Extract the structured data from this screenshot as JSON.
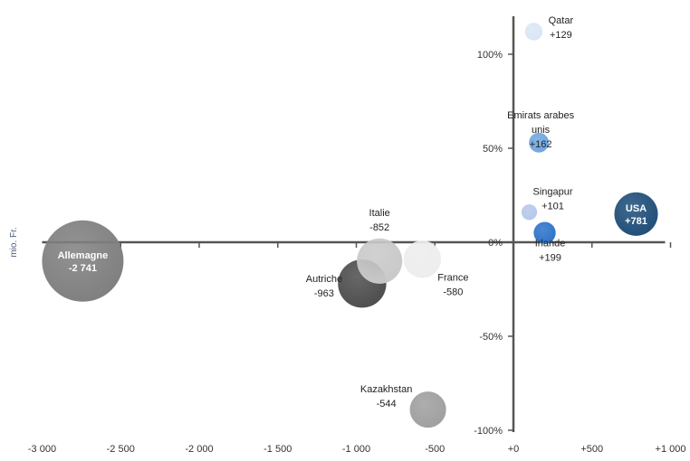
{
  "chart_data": {
    "type": "scatter",
    "title": "",
    "xlabel": "mio. Fr.",
    "ylabel": "",
    "xlim": [
      -3000,
      1000
    ],
    "ylim": [
      -100,
      120
    ],
    "x_ticks": [
      "-3 000",
      "-2 500",
      "-2 000",
      "-1 500",
      "-1 000",
      "-500",
      "+0",
      "+500",
      "+1 000"
    ],
    "x_tick_values": [
      -3000,
      -2500,
      -2000,
      -1500,
      -1000,
      -500,
      0,
      500,
      1000
    ],
    "y_ticks": [
      "100%",
      "50%",
      "0%",
      "-50%",
      "-100%"
    ],
    "y_tick_values": [
      100,
      50,
      0,
      -50,
      -100
    ],
    "grid": false,
    "points": [
      {
        "name": "Allemagne",
        "value_label": "-2 741",
        "x": -2741,
        "y": -10,
        "color": "#7f7f7f",
        "label_inside": true
      },
      {
        "name": "Autriche",
        "value_label": "-963",
        "x": -963,
        "y": -22,
        "color": "#4d4d4d",
        "label_inside": false
      },
      {
        "name": "Italie",
        "value_label": "-852",
        "x": -852,
        "y": -10,
        "color": "#c9c9c9",
        "label_inside": false
      },
      {
        "name": "France",
        "value_label": "-580",
        "x": -580,
        "y": -9,
        "color": "#ededed",
        "label_inside": false
      },
      {
        "name": "Kazakhstan",
        "value_label": "-544",
        "x": -544,
        "y": -89,
        "color": "#9f9f9f",
        "label_inside": false
      },
      {
        "name": "Qatar",
        "value_label": "+129",
        "x": 129,
        "y": 112,
        "color": "#dae6f5",
        "label_inside": false
      },
      {
        "name": "Emirats arabes unis",
        "value_label": "+162",
        "x": 162,
        "y": 53,
        "color": "#6fa6e0",
        "label_inside": false
      },
      {
        "name": "Singapur",
        "value_label": "+101",
        "x": 101,
        "y": 16,
        "color": "#b5c8ea",
        "label_inside": false
      },
      {
        "name": "Irlande",
        "value_label": "+199",
        "x": 199,
        "y": 5,
        "color": "#2e73c8",
        "label_inside": false
      },
      {
        "name": "USA",
        "value_label": "+781",
        "x": 781,
        "y": 15,
        "color": "#1f4e79",
        "label_inside": true
      }
    ]
  }
}
